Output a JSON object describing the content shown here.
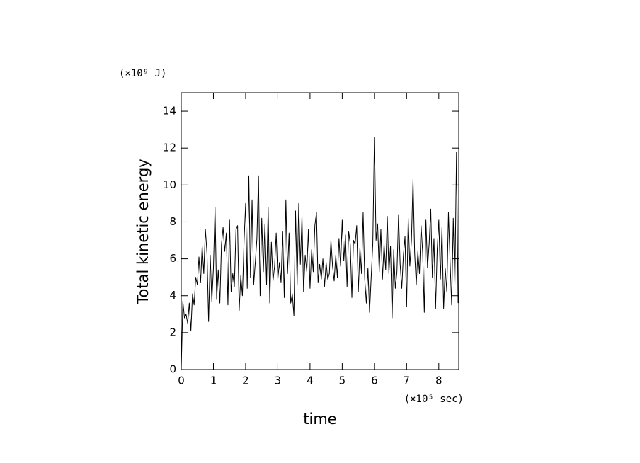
{
  "chart_data": {
    "type": "line",
    "xlabel": "time",
    "ylabel": "Total kinetic energy",
    "xunit": "(×10⁵ sec)",
    "yunit": "(×10⁹ J)",
    "xlim": [
      0,
      8.62
    ],
    "ylim": [
      0,
      15
    ],
    "xticks": [
      0,
      1,
      2,
      3,
      4,
      5,
      6,
      7,
      8
    ],
    "yticks": [
      0,
      2,
      4,
      6,
      8,
      10,
      12,
      14
    ],
    "color": "#000000",
    "x": [
      0,
      0.05,
      0.1,
      0.15,
      0.2,
      0.25,
      0.3,
      0.35,
      0.4,
      0.45,
      0.5,
      0.55,
      0.6,
      0.65,
      0.7,
      0.75,
      0.8,
      0.85,
      0.9,
      0.95,
      1,
      1.05,
      1.1,
      1.15,
      1.2,
      1.25,
      1.3,
      1.35,
      1.4,
      1.45,
      1.5,
      1.55,
      1.6,
      1.65,
      1.7,
      1.75,
      1.8,
      1.85,
      1.9,
      1.95,
      2,
      2.05,
      2.1,
      2.15,
      2.2,
      2.25,
      2.3,
      2.35,
      2.4,
      2.45,
      2.5,
      2.55,
      2.6,
      2.65,
      2.7,
      2.75,
      2.8,
      2.85,
      2.9,
      2.95,
      3,
      3.05,
      3.1,
      3.15,
      3.2,
      3.25,
      3.3,
      3.35,
      3.4,
      3.45,
      3.5,
      3.55,
      3.6,
      3.65,
      3.7,
      3.75,
      3.8,
      3.85,
      3.9,
      3.95,
      4,
      4.05,
      4.1,
      4.15,
      4.2,
      4.25,
      4.3,
      4.35,
      4.4,
      4.45,
      4.5,
      4.55,
      4.6,
      4.65,
      4.7,
      4.75,
      4.8,
      4.85,
      4.9,
      4.95,
      5,
      5.05,
      5.1,
      5.15,
      5.2,
      5.25,
      5.3,
      5.35,
      5.4,
      5.45,
      5.5,
      5.55,
      5.6,
      5.65,
      5.7,
      5.75,
      5.8,
      5.85,
      5.9,
      5.95,
      6,
      6.05,
      6.1,
      6.15,
      6.2,
      6.25,
      6.3,
      6.35,
      6.4,
      6.45,
      6.5,
      6.55,
      6.6,
      6.65,
      6.7,
      6.75,
      6.8,
      6.85,
      6.9,
      6.95,
      7,
      7.05,
      7.1,
      7.15,
      7.2,
      7.25,
      7.3,
      7.35,
      7.4,
      7.45,
      7.5,
      7.55,
      7.6,
      7.65,
      7.7,
      7.75,
      7.8,
      7.85,
      7.9,
      7.95,
      8,
      8.05,
      8.1,
      8.15,
      8.2,
      8.25,
      8.3,
      8.35,
      8.4,
      8.45,
      8.5,
      8.55,
      8.6
    ],
    "values": [
      0,
      3.7,
      2.8,
      3.0,
      2.5,
      3.6,
      2.1,
      4.1,
      3.5,
      5.0,
      4.6,
      6.1,
      4.7,
      6.7,
      5.2,
      7.6,
      6.3,
      2.6,
      6.2,
      3.7,
      5.5,
      8.8,
      3.8,
      5.4,
      3.6,
      6.8,
      7.7,
      6.4,
      7.4,
      3.5,
      8.1,
      4.2,
      5.2,
      4.5,
      7.6,
      7.8,
      3.2,
      5.1,
      4.0,
      6.9,
      9.0,
      4.4,
      10.5,
      5.0,
      9.2,
      4.6,
      5.8,
      7.1,
      10.5,
      4.0,
      8.2,
      5.3,
      7.9,
      4.6,
      8.8,
      3.6,
      6.9,
      4.8,
      5.6,
      7.4,
      4.9,
      5.8,
      4.7,
      7.5,
      3.9,
      9.2,
      5.2,
      7.4,
      3.6,
      4.1,
      2.9,
      8.6,
      4.6,
      9.0,
      5.7,
      8.3,
      4.2,
      6.2,
      5.3,
      7.6,
      4.4,
      6.5,
      5.3,
      7.8,
      8.5,
      4.7,
      5.7,
      4.9,
      6.0,
      4.5,
      5.8,
      4.9,
      5.2,
      7.0,
      5.6,
      4.8,
      6.2,
      5.0,
      7.1,
      5.6,
      8.1,
      5.9,
      7.3,
      4.5,
      7.5,
      6.8,
      3.9,
      7.0,
      6.8,
      7.8,
      4.2,
      6.6,
      5.2,
      8.5,
      4.9,
      3.6,
      5.5,
      3.1,
      5.0,
      6.8,
      12.6,
      7.0,
      7.9,
      5.3,
      7.6,
      4.9,
      6.8,
      5.4,
      8.3,
      5.2,
      6.7,
      2.8,
      6.5,
      4.4,
      5.3,
      8.4,
      5.7,
      4.4,
      6.2,
      7.2,
      3.4,
      8.2,
      5.6,
      7.0,
      10.3,
      6.3,
      4.6,
      6.4,
      5.2,
      7.8,
      6.3,
      3.1,
      8.1,
      5.5,
      6.8,
      8.7,
      5.0,
      7.1,
      3.3,
      6.5,
      8.1,
      4.9,
      7.7,
      3.3,
      5.5,
      4.2,
      8.5,
      5.9,
      3.5,
      8.2,
      4.6,
      11.8,
      3.6
    ]
  }
}
